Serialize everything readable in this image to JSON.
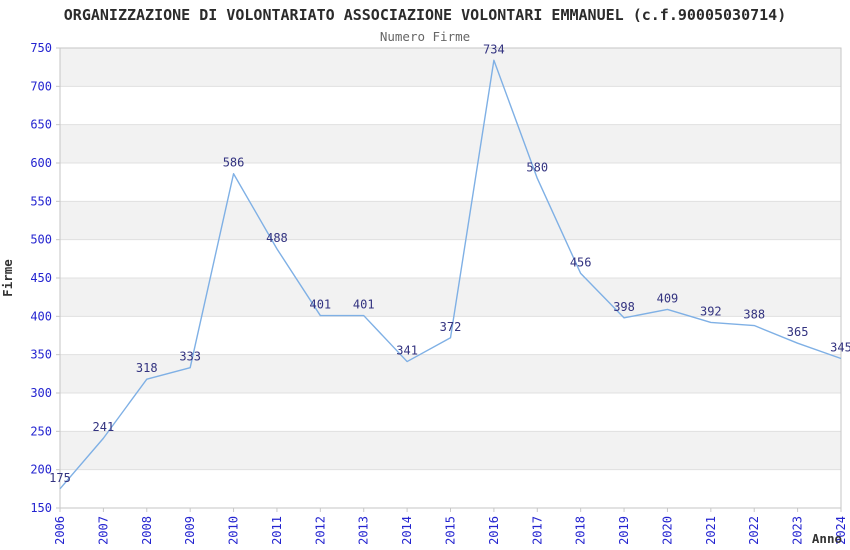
{
  "chart_data": {
    "type": "line",
    "title": "ORGANIZZAZIONE DI VOLONTARIATO ASSOCIAZIONE VOLONTARI EMMANUEL (c.f.90005030714)",
    "subtitle": "Numero Firme",
    "xlabel": "Anno",
    "ylabel": "Firme",
    "x": [
      "2006",
      "2007",
      "2008",
      "2009",
      "2010",
      "2011",
      "2012",
      "2013",
      "2014",
      "2015",
      "2016",
      "2017",
      "2018",
      "2019",
      "2020",
      "2021",
      "2022",
      "2023",
      "2024"
    ],
    "values": [
      175,
      241,
      318,
      333,
      586,
      488,
      401,
      401,
      341,
      372,
      734,
      580,
      456,
      398,
      409,
      392,
      388,
      365,
      345
    ],
    "ylim": [
      150,
      750
    ],
    "ytick_step": 50,
    "grid": "horizontal-bands-alternating",
    "legend": "none",
    "data_labels_visible": true,
    "colors": {
      "line": "#7fb0e5",
      "data_label": "#333380",
      "tick_label": "#2424d0",
      "axis_title": "#333333",
      "title": "#2b2b2b",
      "subtitle": "#666666",
      "band_gray": "#f2f2f2",
      "band_white": "#ffffff",
      "gridline": "#e0e0e0",
      "plot_border": "#c6c6c6"
    }
  }
}
